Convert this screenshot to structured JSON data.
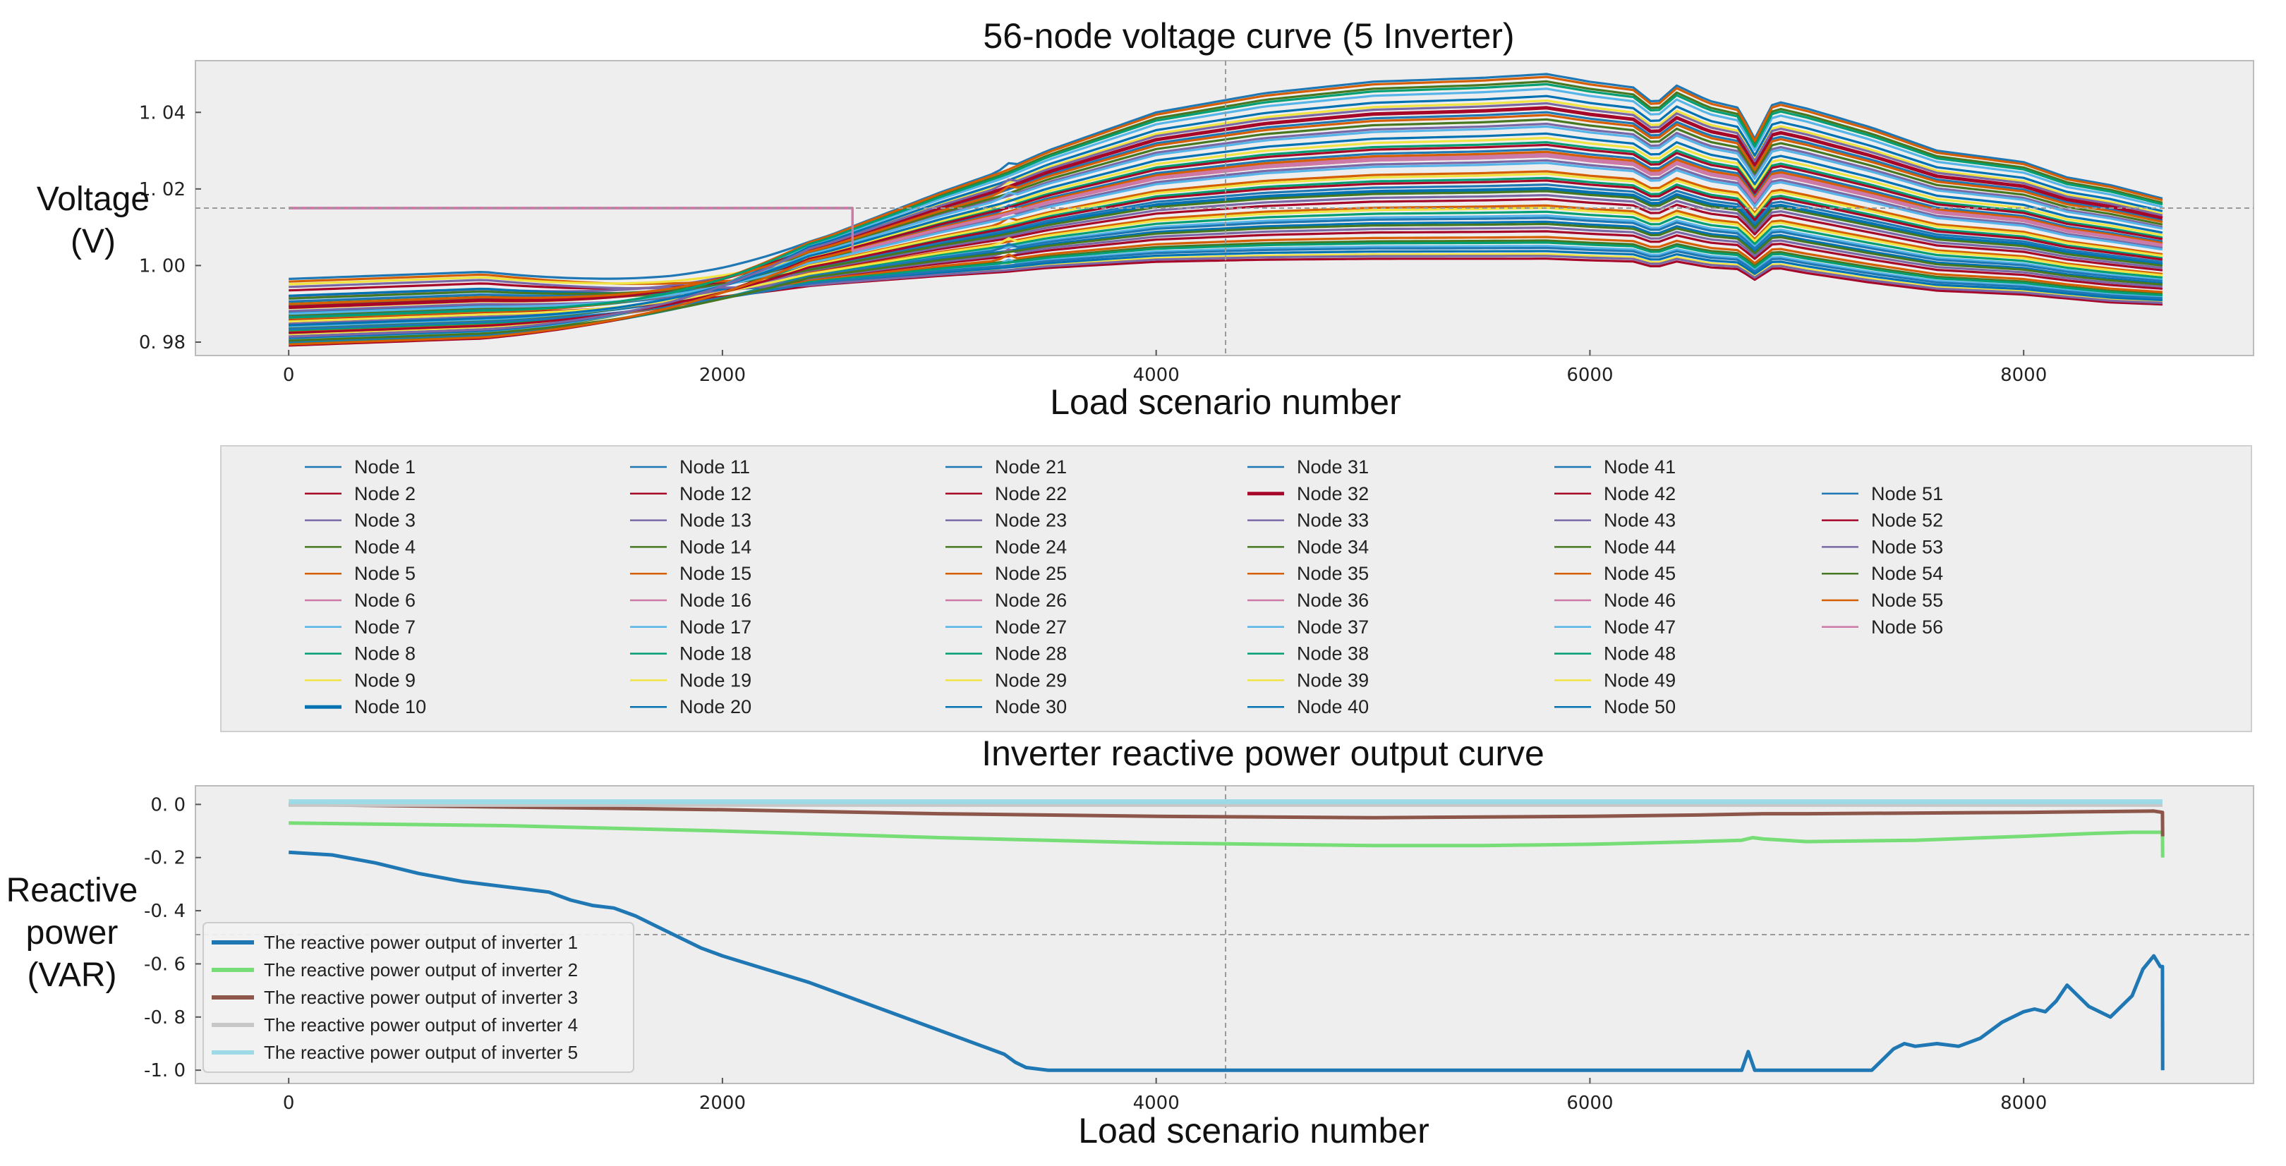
{
  "chart_data": [
    {
      "type": "line",
      "title": "56-node voltage curve (5 Inverter)",
      "xlabel": "Load scenario number",
      "ylabel": "Voltage (V)",
      "xlim": [
        -430,
        9060
      ],
      "ylim": [
        0.9765,
        1.0535
      ],
      "xticks": [
        0,
        2000,
        4000,
        6000,
        8000
      ],
      "yticks": [
        0.98,
        1.0,
        1.02,
        1.04
      ],
      "ytick_labels": [
        "0. 98",
        "1. 00",
        "1. 02",
        "1. 04"
      ],
      "grid": false,
      "crosshair": {
        "x": 4320,
        "y": 1.015
      },
      "constant_level": 1.015,
      "node_count": 56,
      "highlight_nodes": [
        10,
        32
      ],
      "node_x": [
        0,
        500,
        1000,
        1500,
        1750,
        2000,
        2500,
        3000,
        3300,
        3500,
        4000,
        4500,
        5000,
        5500,
        5800,
        6000,
        6200,
        6300,
        6400,
        6550,
        6700,
        6750,
        6850,
        7000,
        7300,
        7600,
        8000,
        8200,
        8400,
        8640
      ],
      "node_env_upper": [
        0.9805,
        0.9835,
        0.987,
        0.992,
        0.995,
        0.999,
        1.008,
        1.019,
        1.025,
        1.03,
        1.04,
        1.045,
        1.048,
        1.049,
        1.05,
        1.048,
        1.0465,
        1.042,
        1.047,
        1.043,
        1.041,
        1.032,
        1.043,
        1.041,
        1.036,
        1.03,
        1.027,
        1.023,
        1.021,
        1.0175
      ],
      "node_env_lower": [
        0.98,
        0.983,
        0.986,
        0.989,
        0.991,
        0.9925,
        0.995,
        0.997,
        0.998,
        0.999,
        1.0005,
        1.001,
        1.0012,
        1.0012,
        1.0012,
        1.0008,
        1.0005,
        0.999,
        1.0005,
        0.999,
        0.9985,
        0.9955,
        0.999,
        0.9975,
        0.995,
        0.993,
        0.992,
        0.991,
        0.99,
        0.9895
      ],
      "start_values": [
        0.9965,
        0.9935,
        0.992,
        0.9905,
        0.9895,
        0.9885,
        0.9875,
        0.9865,
        0.9855,
        0.9845,
        0.9835,
        0.9825,
        0.9815,
        0.9805
      ],
      "legend": {
        "placement": "center",
        "entries": [
          "Node 1",
          "Node 2",
          "Node 3",
          "Node 4",
          "Node 5",
          "Node 6",
          "Node 7",
          "Node 8",
          "Node 9",
          "Node 10",
          "Node 11",
          "Node 12",
          "Node 13",
          "Node 14",
          "Node 15",
          "Node 16",
          "Node 17",
          "Node 18",
          "Node 19",
          "Node 20",
          "Node 21",
          "Node 22",
          "Node 23",
          "Node 24",
          "Node 25",
          "Node 26",
          "Node 27",
          "Node 28",
          "Node 29",
          "Node 30",
          "Node 31",
          "Node 32",
          "Node 33",
          "Node 34",
          "Node 35",
          "Node 36",
          "Node 37",
          "Node 38",
          "Node 39",
          "Node 40",
          "Node 41",
          "Node 42",
          "Node 43",
          "Node 44",
          "Node 45",
          "Node 46",
          "Node 47",
          "Node 48",
          "Node 49",
          "Node 50",
          "Node 51",
          "Node 52",
          "Node 53",
          "Node 54",
          "Node 55",
          "Node 56"
        ],
        "colors": [
          "#1f77b4",
          "#a60628",
          "#7a68a6",
          "#467821",
          "#d55e00",
          "#cc79a7",
          "#56b4e9",
          "#009e73",
          "#f0e442",
          "#0072b2"
        ]
      }
    },
    {
      "type": "line",
      "title": "Inverter reactive power output curve",
      "xlabel": "Load scenario number",
      "ylabel": "Reactive power (VAR)",
      "xlim": [
        -430,
        9060
      ],
      "ylim": [
        -1.05,
        0.07
      ],
      "xticks": [
        0,
        2000,
        4000,
        6000,
        8000
      ],
      "yticks": [
        0.0,
        -0.2,
        -0.4,
        -0.6,
        -0.8,
        -1.0
      ],
      "ytick_labels": [
        "0. 0",
        "-0. 2",
        "-0. 4",
        "-0. 6",
        "-0. 8",
        "-1. 0"
      ],
      "grid": false,
      "crosshair": {
        "x": 4320,
        "y": -0.49
      },
      "legend": {
        "placement": "lower-left"
      },
      "series": [
        {
          "name": "The reactive power output of inverter 1",
          "color": "#1f77b4",
          "x": [
            0,
            200,
            400,
            600,
            800,
            1000,
            1100,
            1200,
            1300,
            1400,
            1500,
            1600,
            1700,
            1800,
            1900,
            2000,
            2200,
            2400,
            2600,
            2800,
            3000,
            3200,
            3300,
            3350,
            3400,
            3500,
            4000,
            5000,
            6000,
            6700,
            6730,
            6760,
            6800,
            7000,
            7200,
            7300,
            7400,
            7450,
            7500,
            7600,
            7700,
            7800,
            7900,
            8000,
            8050,
            8100,
            8150,
            8200,
            8300,
            8400,
            8500,
            8550,
            8600,
            8630,
            8640,
            8641
          ],
          "y": [
            -0.18,
            -0.19,
            -0.22,
            -0.26,
            -0.29,
            -0.31,
            -0.32,
            -0.33,
            -0.36,
            -0.38,
            -0.39,
            -0.42,
            -0.46,
            -0.5,
            -0.54,
            -0.57,
            -0.62,
            -0.67,
            -0.73,
            -0.79,
            -0.85,
            -0.91,
            -0.94,
            -0.97,
            -0.99,
            -1.0,
            -1.0,
            -1.0,
            -1.0,
            -1.0,
            -0.93,
            -1.0,
            -1.0,
            -1.0,
            -1.0,
            -1.0,
            -0.92,
            -0.9,
            -0.91,
            -0.9,
            -0.91,
            -0.88,
            -0.82,
            -0.78,
            -0.77,
            -0.78,
            -0.74,
            -0.68,
            -0.76,
            -0.8,
            -0.72,
            -0.62,
            -0.57,
            -0.61,
            -0.61,
            -1.0
          ]
        },
        {
          "name": "The reactive power output of inverter 2",
          "color": "#77dd77",
          "x": [
            0,
            1000,
            2000,
            3000,
            4000,
            5000,
            5500,
            6000,
            6500,
            6700,
            6750,
            6800,
            7000,
            7500,
            8000,
            8300,
            8500,
            8640,
            8641
          ],
          "y": [
            -0.07,
            -0.08,
            -0.1,
            -0.125,
            -0.145,
            -0.155,
            -0.155,
            -0.15,
            -0.14,
            -0.135,
            -0.125,
            -0.13,
            -0.14,
            -0.135,
            -0.12,
            -0.11,
            -0.105,
            -0.105,
            -0.2
          ]
        },
        {
          "name": "The reactive power output of inverter 3",
          "color": "#8c564b",
          "x": [
            0,
            1000,
            2000,
            3000,
            4000,
            5000,
            6000,
            6500,
            6800,
            7000,
            8000,
            8600,
            8640,
            8641
          ],
          "y": [
            0.0,
            -0.01,
            -0.02,
            -0.035,
            -0.045,
            -0.05,
            -0.045,
            -0.04,
            -0.035,
            -0.035,
            -0.03,
            -0.025,
            -0.03,
            -0.12
          ]
        },
        {
          "name": "The reactive power output of inverter 4",
          "color": "#c7c7c7",
          "x": [
            0,
            8640
          ],
          "y": [
            0.0,
            0.0
          ]
        },
        {
          "name": "The reactive power output of inverter 5",
          "color": "#9edae5",
          "x": [
            0,
            8640
          ],
          "y": [
            0.01,
            0.01
          ]
        }
      ]
    }
  ]
}
